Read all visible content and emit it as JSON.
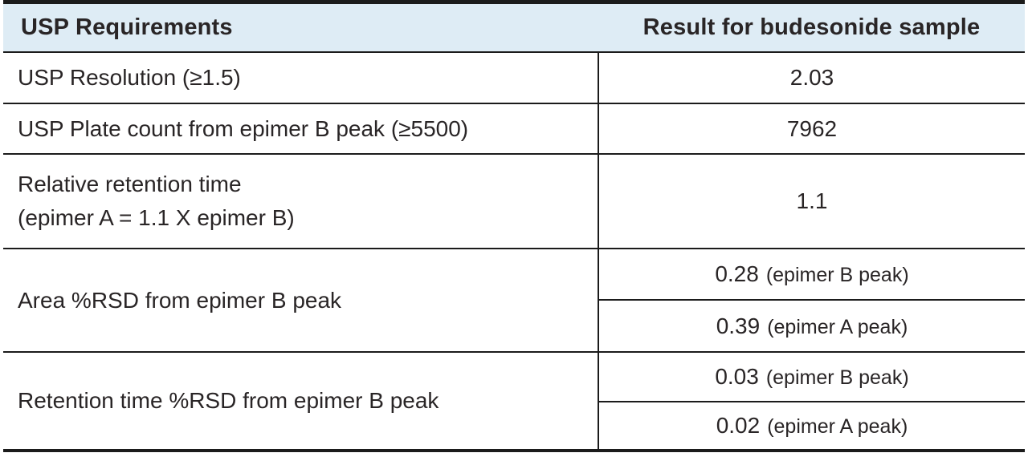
{
  "table": {
    "header": {
      "requirements": "USP Requirements",
      "result": "Result for budesonide sample"
    },
    "colors": {
      "header_bg": "#deecf5",
      "border": "#1b1b1b",
      "text": "#292526"
    },
    "rows": [
      {
        "requirement": "USP Resolution (≥1.5)",
        "result": {
          "number": "2.03"
        }
      },
      {
        "requirement": "USP Plate count from epimer B peak (≥5500)",
        "result": {
          "number": "7962"
        }
      },
      {
        "requirement_line1": "Relative retention time",
        "requirement_line2": "(epimer A = 1.1 X epimer B)",
        "result": {
          "number": "1.1"
        }
      },
      {
        "requirement": "Area %RSD from epimer B peak",
        "results": [
          {
            "number": "0.28",
            "note": "(epimer B peak)"
          },
          {
            "number": "0.39",
            "note": "(epimer A peak)"
          }
        ]
      },
      {
        "requirement": "Retention time %RSD from epimer B peak",
        "results": [
          {
            "number": "0.03",
            "note": "(epimer B peak)"
          },
          {
            "number": "0.02",
            "note": "(epimer A peak)"
          }
        ]
      }
    ]
  }
}
